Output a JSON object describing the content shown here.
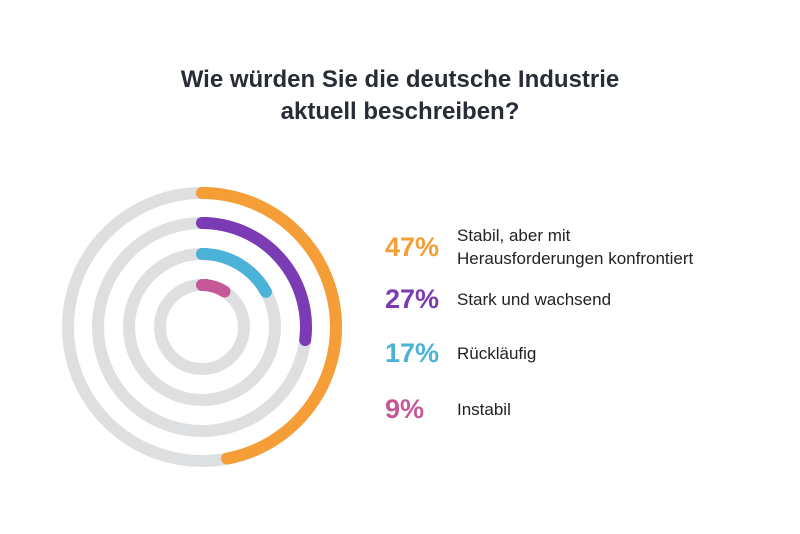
{
  "chart_data": {
    "type": "radial-bar",
    "title_lines": [
      "Wie würden Sie die deutsche Industrie",
      "aktuell beschreiben?"
    ],
    "unit": "%",
    "max": 100,
    "series": [
      {
        "value": 47,
        "label": "47%",
        "category_lines": [
          "Stabil, aber mit",
          "Herausforderungen konfrontiert"
        ],
        "color": "#F59D36"
      },
      {
        "value": 27,
        "label": "27%",
        "category_lines": [
          "Stark und wachsend"
        ],
        "color": "#7A3BB4"
      },
      {
        "value": 17,
        "label": "17%",
        "category_lines": [
          "Rückläufig"
        ],
        "color": "#4BB2D8"
      },
      {
        "value": 9,
        "label": "9%",
        "category_lines": [
          "Instabil"
        ],
        "color": "#C65898"
      }
    ],
    "track_color": "#DEDFE1"
  }
}
